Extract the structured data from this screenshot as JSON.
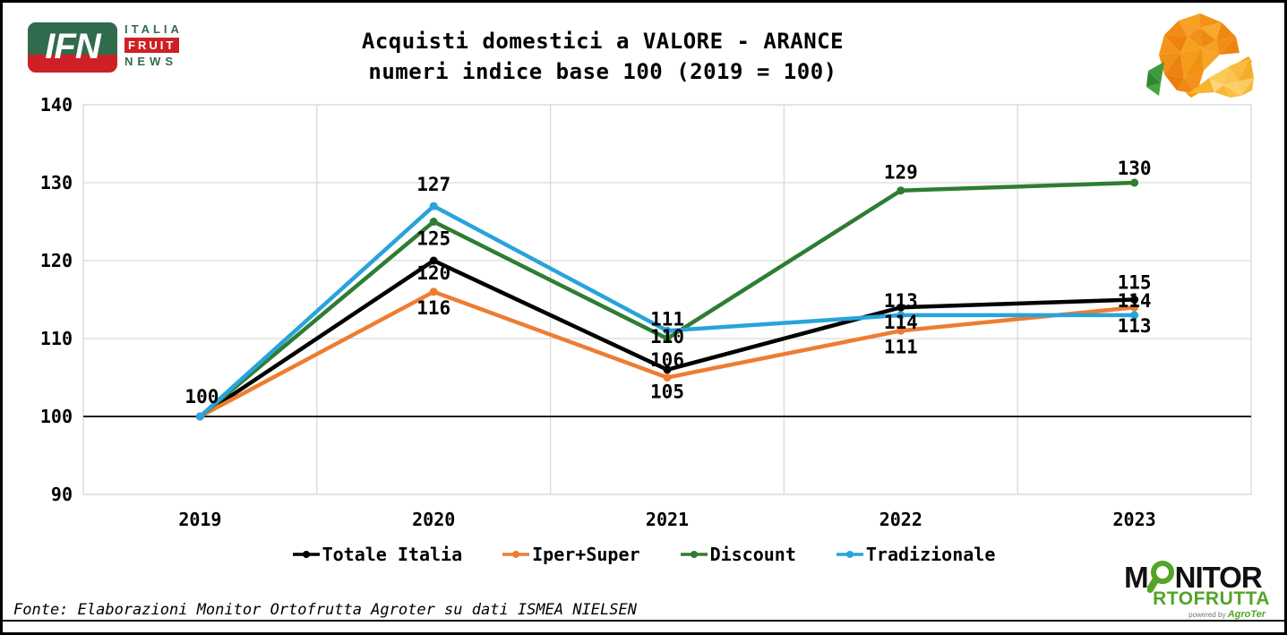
{
  "header": {
    "logo": {
      "ifn": "IFN",
      "italia": "ITALIA",
      "fruit": "FRUIT",
      "news": "NEWS"
    },
    "title_line1": "Acquisti domestici a VALORE - ARANCE",
    "title_line2": "numeri indice base 100 (2019 = 100)"
  },
  "chart_data": {
    "type": "line",
    "title": "Acquisti domestici a VALORE - ARANCE",
    "subtitle": "numeri indice base 100 (2019 = 100)",
    "categories": [
      "2019",
      "2020",
      "2021",
      "2022",
      "2023"
    ],
    "series": [
      {
        "name": "Totale Italia",
        "color": "#000000",
        "values": [
          100,
          120,
          106,
          114,
          115
        ]
      },
      {
        "name": "Iper+Super",
        "color": "#ED7D31",
        "values": [
          100,
          116,
          105,
          111,
          114
        ]
      },
      {
        "name": "Discount",
        "color": "#2E7D32",
        "values": [
          100,
          125,
          110,
          129,
          130
        ]
      },
      {
        "name": "Tradizionale",
        "color": "#29A3DC",
        "values": [
          100,
          127,
          111,
          113,
          113
        ]
      }
    ],
    "ylim": [
      90,
      140
    ],
    "yticks": [
      140,
      130,
      120,
      110,
      100,
      90
    ],
    "baseline_value": 100,
    "grid": true,
    "gridline_color": "#D9D9D9",
    "baseline_color": "#000000",
    "legend_position": "bottom",
    "data_labels": true
  },
  "footer": {
    "source": "Fonte: Elaborazioni Monitor Ortofrutta Agroter su dati ISMEA NIELSEN",
    "monitor_logo": {
      "part1": "M",
      "part2": "NITOR",
      "line2": "RTOFRUTTA",
      "powered_by": "powered by",
      "brand": "AgroTer"
    }
  }
}
